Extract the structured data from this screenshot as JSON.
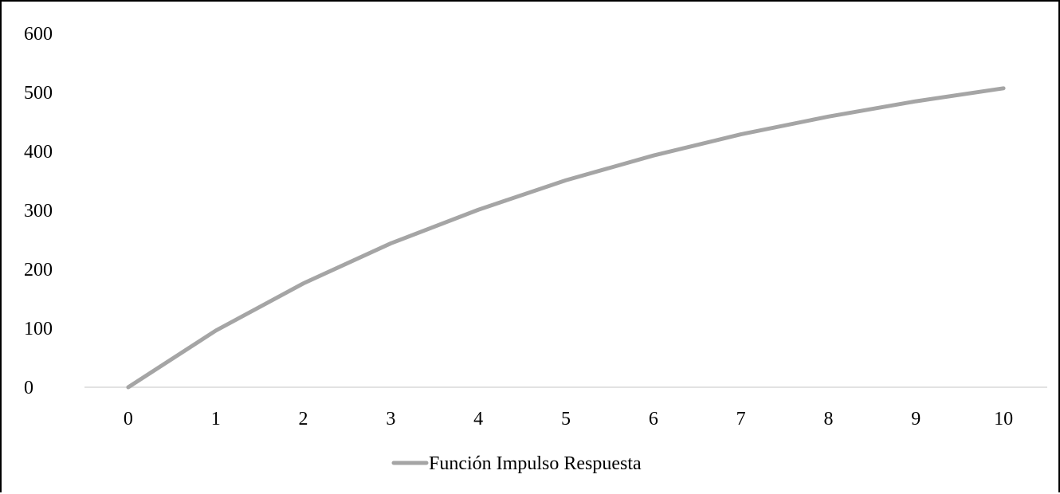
{
  "chart_data": {
    "type": "line",
    "title": "",
    "xlabel": "",
    "ylabel": "",
    "x": [
      0,
      1,
      2,
      3,
      4,
      5,
      6,
      7,
      8,
      9,
      10
    ],
    "series": [
      {
        "name": "Función Impulso Respuesta",
        "values": [
          0,
          96,
          176,
          244,
          301,
          351,
          393,
          429,
          459,
          485,
          507
        ],
        "color": "#a5a5a5"
      }
    ],
    "ylim": [
      0,
      600
    ],
    "yticks": [
      0,
      100,
      200,
      300,
      400,
      500,
      600
    ],
    "xticks": [
      0,
      1,
      2,
      3,
      4,
      5,
      6,
      7,
      8,
      9,
      10
    ],
    "grid": false,
    "legend_position": "bottom",
    "axis_color": "#d9d9d9"
  }
}
